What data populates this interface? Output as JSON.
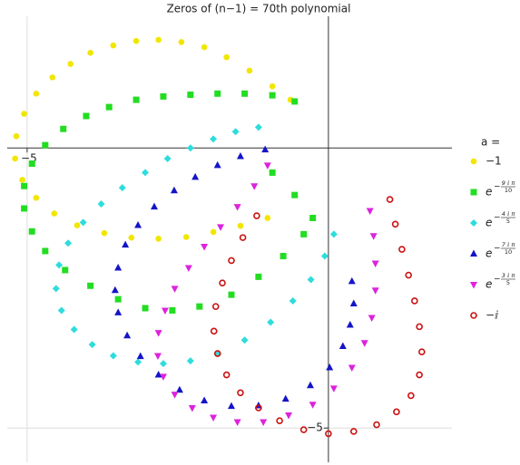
{
  "chart_data": {
    "type": "scatter",
    "title": "Zeros of (n−1) = 70th polynomial",
    "legend_title": "a =",
    "legend": "right",
    "grid": true,
    "xlim": [
      -5.33,
      2.05
    ],
    "ylim": [
      -5.53,
      2.35
    ],
    "xticks": [
      {
        "value": -5,
        "label": "−5"
      }
    ],
    "yticks": [
      {
        "value": -5,
        "label": "−5"
      }
    ],
    "series": [
      {
        "name": "−1",
        "color": "#f2e600",
        "marker": "circle",
        "x": [
          -0.63,
          -0.93,
          -1.31,
          -1.69,
          -2.06,
          -2.44,
          -2.82,
          -3.19,
          -3.57,
          -3.95,
          -4.28,
          -4.58,
          -4.85,
          -5.05,
          -5.18,
          -5.2,
          -5.08,
          -4.85,
          -4.55,
          -4.17,
          -3.72,
          -3.27,
          -2.82,
          -2.36,
          -1.91,
          -1.46,
          -1.01
        ],
        "values": [
          0.86,
          1.1,
          1.38,
          1.62,
          1.8,
          1.89,
          1.93,
          1.91,
          1.83,
          1.7,
          1.5,
          1.26,
          0.97,
          0.61,
          0.21,
          -0.19,
          -0.57,
          -0.89,
          -1.17,
          -1.38,
          -1.52,
          -1.6,
          -1.62,
          -1.59,
          -1.5,
          -1.39,
          -1.25
        ]
      },
      {
        "name": "e",
        "exponent": [
          "−",
          "9 ⅈ π",
          "10"
        ],
        "color": "#22dd22",
        "marker": "square",
        "x": [
          -0.56,
          -0.93,
          -1.39,
          -1.84,
          -2.29,
          -2.74,
          -3.19,
          -3.64,
          -4.02,
          -4.4,
          -4.7,
          -4.92,
          -5.05,
          -5.05,
          -4.92,
          -4.7,
          -4.37,
          -3.95,
          -3.49,
          -3.04,
          -2.59,
          -2.14,
          -1.61,
          -1.16,
          -0.75,
          -0.41,
          -0.26,
          -0.56,
          -0.93
        ],
        "values": [
          0.83,
          0.94,
          0.97,
          0.97,
          0.95,
          0.92,
          0.86,
          0.73,
          0.57,
          0.34,
          0.05,
          -0.28,
          -0.68,
          -1.08,
          -1.49,
          -1.84,
          -2.18,
          -2.46,
          -2.7,
          -2.86,
          -2.9,
          -2.83,
          -2.62,
          -2.3,
          -1.93,
          -1.54,
          -1.25,
          -0.84,
          -0.44
        ]
      },
      {
        "name": "e",
        "exponent": [
          "−",
          "4 ⅈ π",
          "5"
        ],
        "color": "#2fdcdc",
        "marker": "diamond",
        "x": [
          -1.16,
          -1.54,
          -1.91,
          -2.29,
          -2.67,
          -3.04,
          -3.42,
          -3.77,
          -4.07,
          -4.32,
          -4.47,
          -4.52,
          -4.43,
          -4.22,
          -3.92,
          -3.57,
          -3.16,
          -2.74,
          -2.29,
          -1.84,
          -1.39,
          -0.96,
          -0.59,
          -0.29,
          -0.06,
          0.09
        ],
        "values": [
          0.37,
          0.29,
          0.16,
          0.0,
          -0.19,
          -0.44,
          -0.71,
          -1.0,
          -1.33,
          -1.7,
          -2.09,
          -2.51,
          -2.9,
          -3.24,
          -3.51,
          -3.71,
          -3.82,
          -3.85,
          -3.8,
          -3.67,
          -3.43,
          -3.11,
          -2.73,
          -2.35,
          -1.93,
          -1.54
        ]
      },
      {
        "name": "e",
        "exponent": [
          "−",
          "7 ⅈ π",
          "10"
        ],
        "color": "#1414c8",
        "marker": "triangle-up",
        "x": [
          -1.05,
          -1.46,
          -1.84,
          -2.21,
          -2.56,
          -2.89,
          -3.16,
          -3.37,
          -3.49,
          -3.54,
          -3.49,
          -3.34,
          -3.12,
          -2.82,
          -2.47,
          -2.06,
          -1.61,
          -1.16,
          -0.71,
          -0.3,
          0.02,
          0.24,
          0.36,
          0.42,
          0.39
        ],
        "values": [
          -0.03,
          -0.15,
          -0.31,
          -0.52,
          -0.76,
          -1.05,
          -1.38,
          -1.73,
          -2.14,
          -2.54,
          -2.94,
          -3.35,
          -3.72,
          -4.05,
          -4.32,
          -4.51,
          -4.61,
          -4.6,
          -4.48,
          -4.24,
          -3.92,
          -3.54,
          -3.16,
          -2.78,
          -2.38
        ]
      },
      {
        "name": "e",
        "exponent": [
          "−",
          "3 ⅈ π",
          "5"
        ],
        "color": "#dd22dd",
        "marker": "triangle-down",
        "x": [
          -1.01,
          -1.23,
          -1.51,
          -1.79,
          -2.06,
          -2.32,
          -2.55,
          -2.71,
          -2.82,
          -2.83,
          -2.74,
          -2.55,
          -2.26,
          -1.91,
          -1.51,
          -1.08,
          -0.66,
          -0.26,
          0.09,
          0.39,
          0.6,
          0.72,
          0.78,
          0.78,
          0.75,
          0.69
        ],
        "values": [
          -0.31,
          -0.68,
          -1.05,
          -1.41,
          -1.76,
          -2.14,
          -2.51,
          -2.9,
          -3.3,
          -3.71,
          -4.08,
          -4.4,
          -4.64,
          -4.81,
          -4.89,
          -4.89,
          -4.77,
          -4.58,
          -4.29,
          -3.92,
          -3.48,
          -3.03,
          -2.54,
          -2.06,
          -1.57,
          -1.12
        ]
      },
      {
        "name": "−ⅈ",
        "color": "#cc1111",
        "marker": "circle-open",
        "x": [
          -1.19,
          -1.42,
          -1.61,
          -1.76,
          -1.87,
          -1.9,
          -1.84,
          -1.69,
          -1.46,
          -1.16,
          -0.81,
          -0.41,
          0.0,
          0.42,
          0.8,
          1.13,
          1.37,
          1.51,
          1.55,
          1.51,
          1.43,
          1.33,
          1.22,
          1.11,
          1.02
        ],
        "values": [
          -1.21,
          -1.6,
          -2.01,
          -2.41,
          -2.83,
          -3.27,
          -3.67,
          -4.05,
          -4.37,
          -4.64,
          -4.87,
          -5.03,
          -5.1,
          -5.06,
          -4.94,
          -4.71,
          -4.42,
          -4.05,
          -3.64,
          -3.19,
          -2.73,
          -2.27,
          -1.81,
          -1.36,
          -0.92
        ]
      }
    ]
  }
}
